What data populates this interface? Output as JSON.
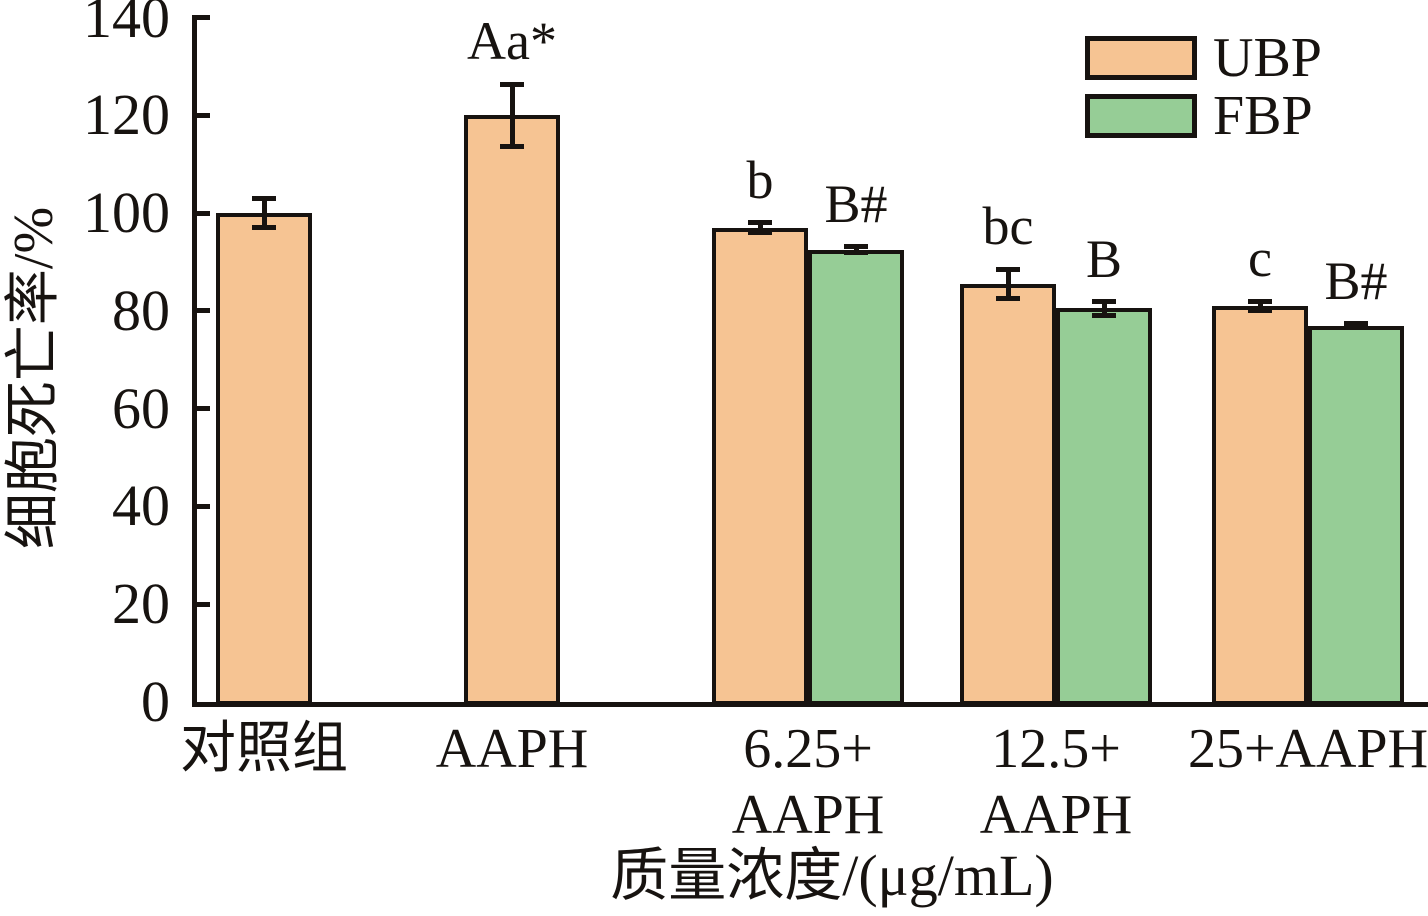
{
  "chart_data": {
    "type": "bar",
    "title": "",
    "xlabel": "质量浓度/(μg/mL)",
    "ylabel": "细胞死亡率/%",
    "ylim": [
      0,
      140
    ],
    "yticks": [
      0,
      20,
      40,
      60,
      80,
      100,
      120,
      140
    ],
    "grid": false,
    "categories": [
      [
        "对照组"
      ],
      [
        "AAPH"
      ],
      [
        "6.25+",
        "AAPH"
      ],
      [
        "12.5+",
        "AAPH"
      ],
      [
        "25+AAPH"
      ]
    ],
    "series": [
      {
        "name": "UBP",
        "color": "#f6c493",
        "values": [
          100,
          120,
          97,
          85.5,
          81
        ],
        "errors": [
          3,
          6.3,
          1,
          3,
          1
        ],
        "annotations": [
          "",
          "Aa*",
          "b",
          "bc",
          "c"
        ]
      },
      {
        "name": "FBP",
        "color": "#96cd96",
        "values": [
          null,
          null,
          92.5,
          80.5,
          77
        ],
        "errors": [
          null,
          null,
          0.6,
          1.4,
          0.4
        ],
        "annotations": [
          "",
          "",
          "B#",
          "B",
          "B#"
        ]
      }
    ],
    "legend": {
      "position": "top-right",
      "entries": [
        "UBP",
        "FBP"
      ]
    },
    "edge_color": "#171310"
  }
}
